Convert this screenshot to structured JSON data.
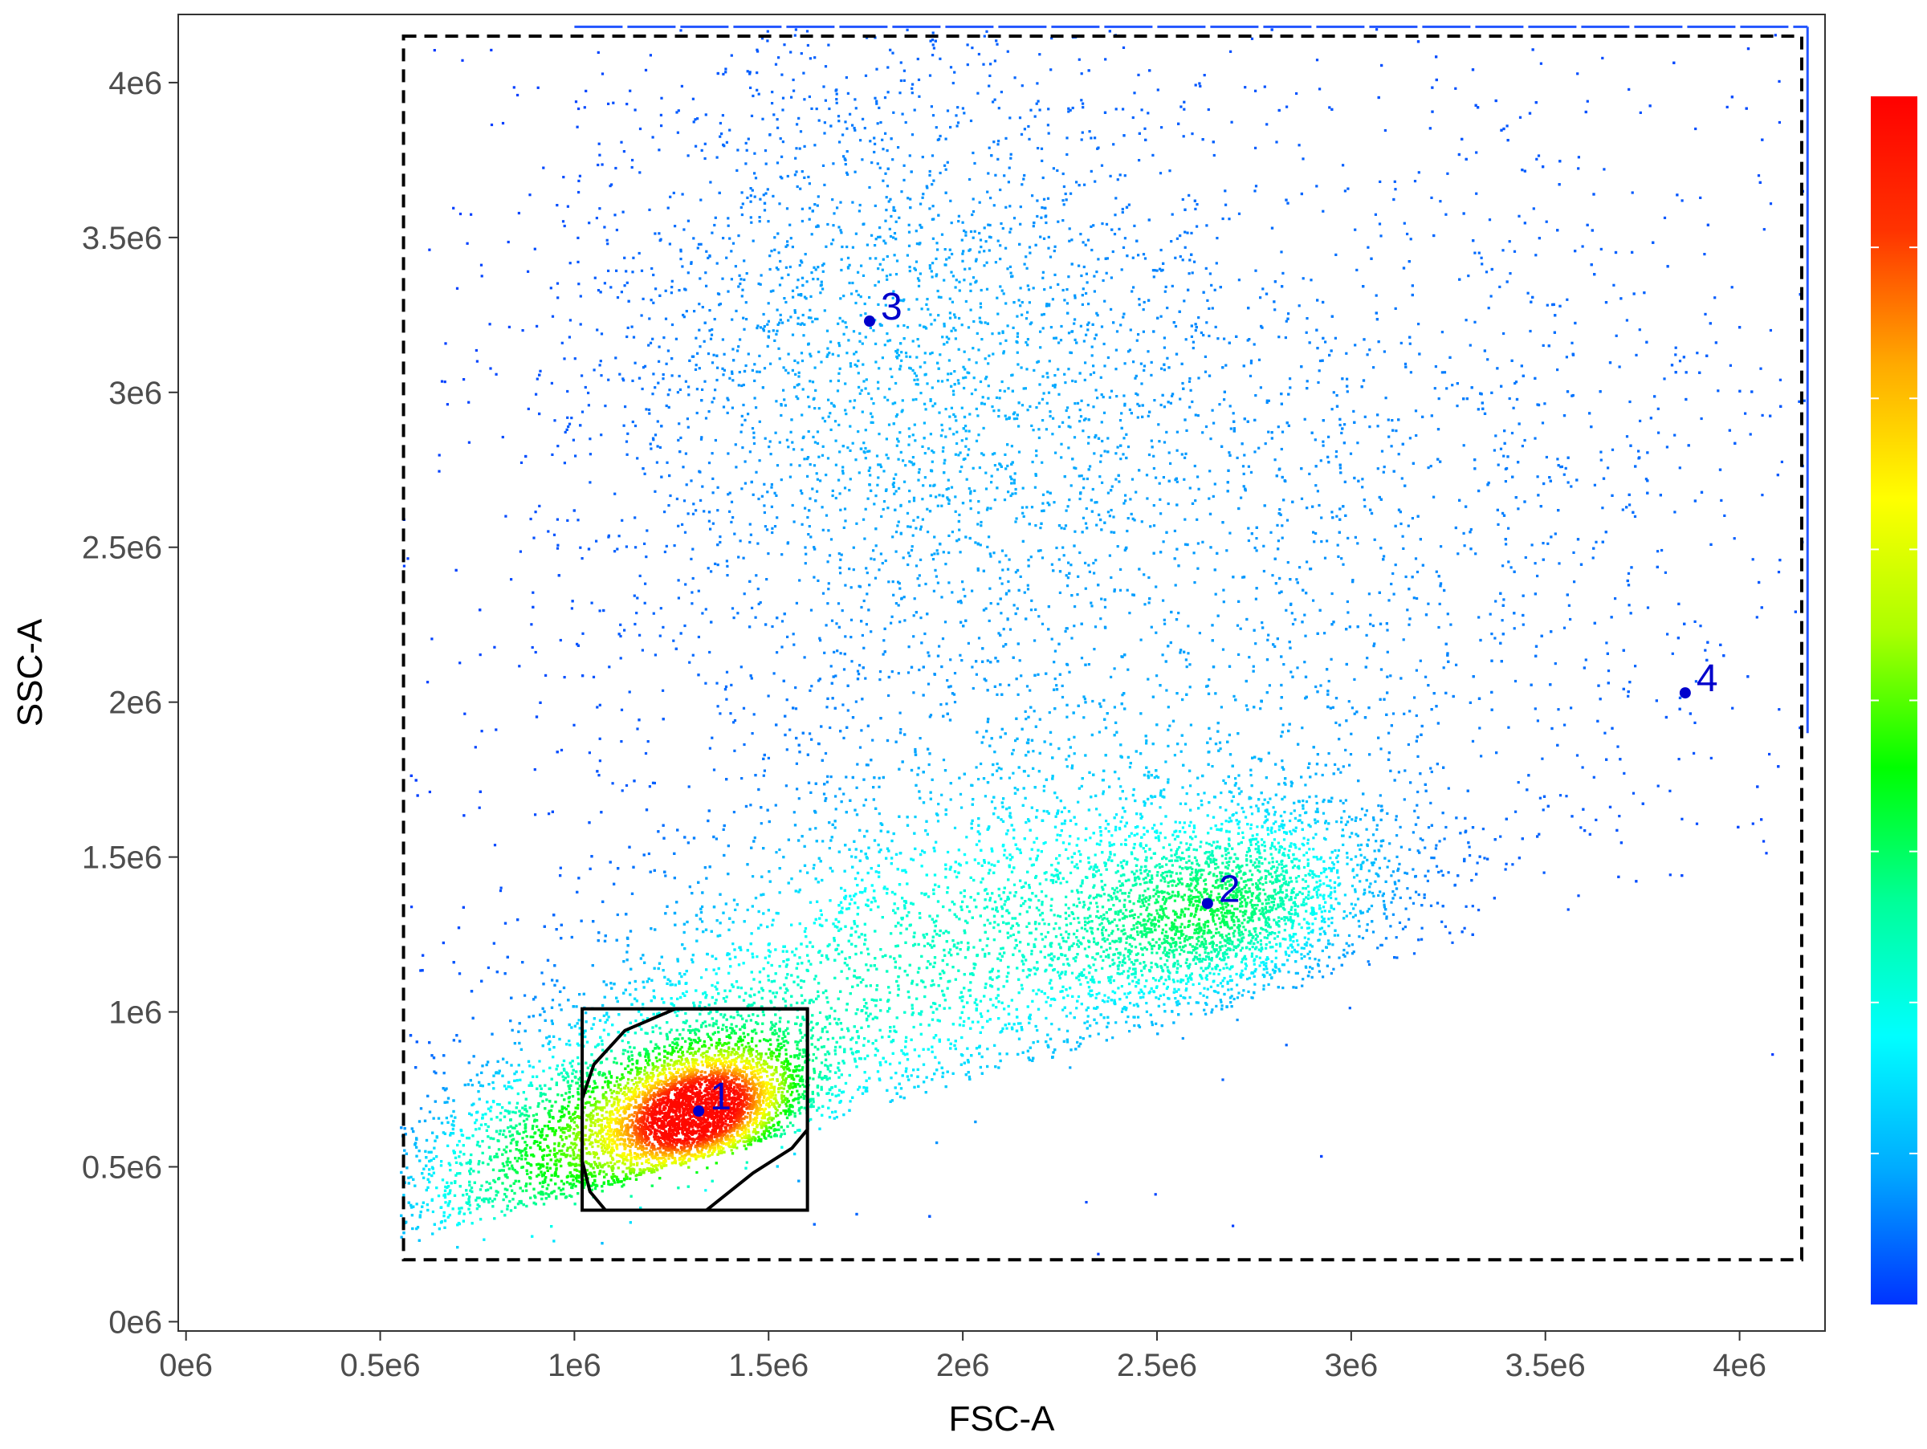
{
  "chart_data": {
    "type": "scatter",
    "subtype": "flow-cytometry-density",
    "xlabel": "FSC-A",
    "ylabel": "SSC-A",
    "xlim": [
      -20000.0,
      4220000.0
    ],
    "ylim": [
      -30000.0,
      4220000.0
    ],
    "x_ticks": [
      {
        "value": 0,
        "label": "0e6"
      },
      {
        "value": 500000,
        "label": "0.5e6"
      },
      {
        "value": 1000000,
        "label": "1e6"
      },
      {
        "value": 1500000,
        "label": "1.5e6"
      },
      {
        "value": 2000000,
        "label": "2e6"
      },
      {
        "value": 2500000,
        "label": "2.5e6"
      },
      {
        "value": 3000000,
        "label": "3e6"
      },
      {
        "value": 3500000,
        "label": "3.5e6"
      },
      {
        "value": 4000000,
        "label": "4e6"
      }
    ],
    "y_ticks": [
      {
        "value": 0,
        "label": "0e6"
      },
      {
        "value": 500000,
        "label": "0.5e6"
      },
      {
        "value": 1000000,
        "label": "1e6"
      },
      {
        "value": 1500000,
        "label": "1.5e6"
      },
      {
        "value": 2000000,
        "label": "2e6"
      },
      {
        "value": 2500000,
        "label": "2.5e6"
      },
      {
        "value": 3000000,
        "label": "3e6"
      },
      {
        "value": 3500000,
        "label": "3.5e6"
      },
      {
        "value": 4000000,
        "label": "4e6"
      }
    ],
    "grid": false,
    "colorscale": {
      "placement": "right",
      "stops": [
        "#0033ff",
        "#00aaff",
        "#00ffff",
        "#00ff99",
        "#00ff00",
        "#aaff00",
        "#ffff00",
        "#ffaa00",
        "#ff3300",
        "#ff0000"
      ]
    },
    "clusters": [
      {
        "label": "1",
        "x": 1320000,
        "y": 680000
      },
      {
        "label": "2",
        "x": 2630000,
        "y": 1350000
      },
      {
        "label": "3",
        "x": 1760000,
        "y": 3230000
      },
      {
        "label": "4",
        "x": 3860000,
        "y": 2030000
      }
    ],
    "marker_color": "#0000cc",
    "gates": {
      "outer_dashed_rect": {
        "x": [
          560000,
          4160000
        ],
        "y": [
          200000,
          4150000
        ]
      },
      "inner_rect": {
        "x": [
          1020000,
          1600000
        ],
        "y": [
          360000,
          1010000
        ]
      },
      "inner_polygon": [
        [
          1020000,
          720000
        ],
        [
          1050000,
          830000
        ],
        [
          1130000,
          940000
        ],
        [
          1260000,
          1010000
        ],
        [
          1600000,
          1010000
        ],
        [
          1600000,
          620000
        ],
        [
          1560000,
          560000
        ],
        [
          1460000,
          480000
        ],
        [
          1340000,
          360000
        ],
        [
          1080000,
          360000
        ],
        [
          1040000,
          420000
        ],
        [
          1020000,
          520000
        ]
      ]
    }
  }
}
